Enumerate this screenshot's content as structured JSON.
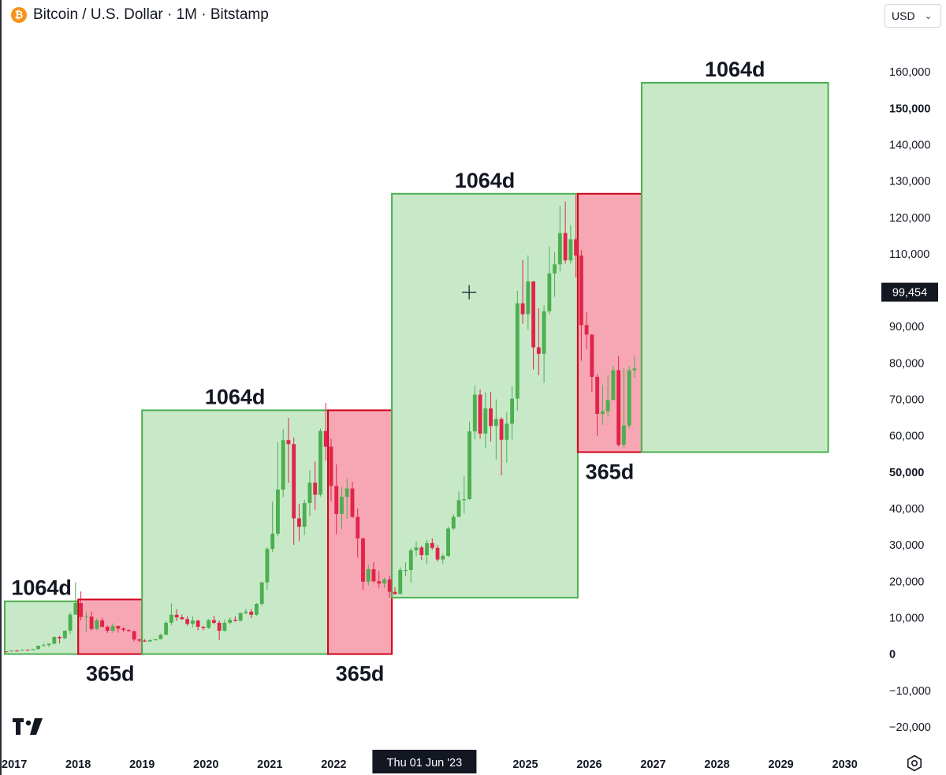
{
  "header": {
    "coin_symbol": "₿",
    "title": "Bitcoin / U.S. Dollar · 1M · Bitstamp",
    "currency": "USD"
  },
  "icons": {
    "coin": "bitcoin-coin-icon",
    "currency_dropdown": "chevron-down-icon",
    "settings": "gear-icon",
    "logo": "tradingview-logo-icon",
    "cursor": "crosshair-cursor-icon"
  },
  "colors": {
    "up": "#4caf50",
    "down": "#e0244a",
    "green_fill": "#c8e9c8",
    "green_stroke": "#4caf50",
    "red_fill": "#f7a7b4",
    "red_stroke": "#d0021b",
    "label_bg": "#131722"
  },
  "chart_data": {
    "type": "candlestick",
    "title": "Bitcoin / U.S. Dollar · 1M · Bitstamp",
    "ylim": [
      -25000,
      170000
    ],
    "xlim": [
      2016.85,
      2030.35
    ],
    "y_ticks": [
      "160,000",
      "150,000",
      "140,000",
      "130,000",
      "120,000",
      "110,000",
      "100,000",
      "90,000",
      "80,000",
      "70,000",
      "60,000",
      "50,000",
      "40,000",
      "30,000",
      "20,000",
      "10,000",
      "0",
      "−10,000",
      "−20,000"
    ],
    "y_tick_values": [
      160000,
      150000,
      140000,
      130000,
      120000,
      110000,
      100000,
      90000,
      80000,
      70000,
      60000,
      50000,
      40000,
      30000,
      20000,
      10000,
      0,
      -10000,
      -20000
    ],
    "bold_ticks": [
      "150,000",
      "50,000",
      "0"
    ],
    "x_ticks": [
      "2017",
      "2018",
      "2019",
      "2020",
      "2021",
      "2022",
      "2025",
      "2026",
      "2027",
      "2028",
      "2029",
      "2030"
    ],
    "x_tick_values": [
      2017,
      2018,
      2019,
      2020,
      2021,
      2022,
      2025,
      2026,
      2027,
      2028,
      2029,
      2030
    ],
    "price_label": "99,454",
    "price_value": 99454,
    "crosshair_date": "Thu 01 Jun '23",
    "crosshair_date_value": 2023.42,
    "crosshair_point": {
      "x": 2024.12,
      "y": 99454
    },
    "zones": [
      {
        "type": "green",
        "x0": 2016.85,
        "x1": 2018.0,
        "y0": 0,
        "y1": 14500,
        "label": "1064d",
        "label_pos": "top"
      },
      {
        "type": "red",
        "x0": 2018.0,
        "x1": 2019.0,
        "y0": 0,
        "y1": 15000,
        "label": "365d",
        "label_pos": "bottom"
      },
      {
        "type": "green",
        "x0": 2019.0,
        "x1": 2021.91,
        "y0": 0,
        "y1": 67000,
        "label": "1064d",
        "label_pos": "top"
      },
      {
        "type": "red",
        "x0": 2021.91,
        "x1": 2022.91,
        "y0": 0,
        "y1": 67000,
        "label": "365d",
        "label_pos": "bottom"
      },
      {
        "type": "green",
        "x0": 2022.91,
        "x1": 2025.82,
        "y0": 15500,
        "y1": 126500,
        "label": "1064d",
        "label_pos": "top"
      },
      {
        "type": "red",
        "x0": 2025.82,
        "x1": 2026.82,
        "y0": 55500,
        "y1": 126500,
        "label": "365d",
        "label_pos": "bottom"
      },
      {
        "type": "green",
        "x0": 2026.82,
        "x1": 2029.74,
        "y0": 55500,
        "y1": 157000,
        "label": "1064d",
        "label_pos": "top"
      }
    ],
    "candles_monthly_from": "2016-11",
    "candles": [
      [
        740,
        730,
        760,
        720
      ],
      [
        730,
        960,
        980,
        730
      ],
      [
        960,
        950,
        1150,
        750
      ],
      [
        950,
        1190,
        1200,
        930
      ],
      [
        1190,
        1070,
        1260,
        890
      ],
      [
        1070,
        1350,
        1360,
        1060
      ],
      [
        1350,
        2300,
        2330,
        1350
      ],
      [
        2300,
        2480,
        3000,
        2100
      ],
      [
        2480,
        2860,
        2930,
        1900
      ],
      [
        2860,
        4700,
        4800,
        2700
      ],
      [
        4700,
        4340,
        5000,
        2970
      ],
      [
        4340,
        6440,
        6500,
        4100
      ],
      [
        6440,
        10850,
        11500,
        5500
      ],
      [
        10850,
        14000,
        19700,
        10800
      ],
      [
        14000,
        10200,
        17200,
        9200
      ],
      [
        10200,
        10300,
        11700,
        6000
      ],
      [
        10300,
        6900,
        11700,
        6500
      ],
      [
        6900,
        9250,
        9750,
        6500
      ],
      [
        9250,
        7500,
        10000,
        7300
      ],
      [
        7500,
        6400,
        7800,
        5800
      ],
      [
        6400,
        7750,
        8450,
        5800
      ],
      [
        7750,
        7000,
        7800,
        5900
      ],
      [
        7000,
        6600,
        7400,
        6100
      ],
      [
        6600,
        6300,
        6800,
        6200
      ],
      [
        6300,
        4000,
        6400,
        3500
      ],
      [
        4000,
        3700,
        4300,
        3200
      ],
      [
        3700,
        3450,
        4100,
        3350
      ],
      [
        3450,
        3800,
        4200,
        3350
      ],
      [
        3800,
        4100,
        4100,
        3700
      ],
      [
        4100,
        5300,
        5600,
        4100
      ],
      [
        5300,
        8600,
        9100,
        5300
      ],
      [
        8600,
        10800,
        13900,
        7900
      ],
      [
        10800,
        10100,
        12300,
        9100
      ],
      [
        10100,
        9600,
        10900,
        9400
      ],
      [
        9600,
        8300,
        10400,
        7800
      ],
      [
        8300,
        9200,
        10400,
        7300
      ],
      [
        9200,
        7500,
        9400,
        6500
      ],
      [
        7500,
        7200,
        7800,
        6500
      ],
      [
        7200,
        9350,
        9600,
        6900
      ],
      [
        9350,
        8600,
        10500,
        8200
      ],
      [
        8600,
        6400,
        9200,
        3800
      ],
      [
        6400,
        8600,
        9500,
        6200
      ],
      [
        8600,
        9450,
        10100,
        8200
      ],
      [
        9450,
        9150,
        10400,
        8900
      ],
      [
        9150,
        11300,
        11400,
        9000
      ],
      [
        11300,
        11650,
        12400,
        10900
      ],
      [
        11650,
        10800,
        12400,
        9900
      ],
      [
        10800,
        13800,
        14000,
        10400
      ],
      [
        13800,
        19700,
        19900,
        13200
      ],
      [
        19700,
        28900,
        29300,
        17600
      ],
      [
        28900,
        33100,
        41900,
        28100
      ],
      [
        33100,
        45200,
        58300,
        32300
      ],
      [
        45200,
        58800,
        61800,
        43100
      ],
      [
        58800,
        57700,
        64900,
        47000
      ],
      [
        57700,
        37300,
        59500,
        30000
      ],
      [
        37300,
        35000,
        41300,
        31000
      ],
      [
        35000,
        41500,
        42400,
        32700
      ],
      [
        41500,
        47100,
        50500,
        37900
      ],
      [
        47100,
        43800,
        52900,
        39600
      ],
      [
        43800,
        61300,
        62000,
        43300
      ],
      [
        61300,
        57000,
        69000,
        53200
      ],
      [
        57000,
        46200,
        59200,
        42000
      ],
      [
        46200,
        38500,
        52100,
        32900
      ],
      [
        38500,
        43200,
        45900,
        34400
      ],
      [
        43200,
        45500,
        48200,
        37200
      ],
      [
        45500,
        37700,
        47400,
        37400
      ],
      [
        37700,
        31800,
        40000,
        26500
      ],
      [
        31800,
        19900,
        31900,
        17600
      ],
      [
        19900,
        23300,
        24600,
        18800
      ],
      [
        23300,
        20000,
        25200,
        19600
      ],
      [
        20000,
        19400,
        22800,
        18200
      ],
      [
        19400,
        20500,
        21100,
        18200
      ],
      [
        20500,
        17100,
        21500,
        15500
      ],
      [
        17100,
        16500,
        18400,
        16300
      ],
      [
        16500,
        23100,
        23800,
        16500
      ],
      [
        23100,
        23100,
        25200,
        21400
      ],
      [
        23100,
        28500,
        29200,
        19600
      ],
      [
        28500,
        29300,
        31000,
        26900
      ],
      [
        29300,
        27200,
        29800,
        25800
      ],
      [
        27200,
        30500,
        31400,
        24800
      ],
      [
        30500,
        29200,
        31800,
        28600
      ],
      [
        29200,
        26000,
        30000,
        25400
      ],
      [
        26000,
        27000,
        27500,
        24900
      ],
      [
        27000,
        34500,
        35000,
        26600
      ],
      [
        34500,
        37700,
        38400,
        34100
      ],
      [
        37700,
        42300,
        44700,
        37700
      ],
      [
        42300,
        42600,
        48900,
        38600
      ],
      [
        42600,
        61200,
        63900,
        42300
      ],
      [
        61200,
        71300,
        73800,
        59000
      ],
      [
        71300,
        60600,
        72700,
        59200
      ],
      [
        60600,
        67500,
        71900,
        56600
      ],
      [
        67500,
        62700,
        72000,
        58400
      ],
      [
        62700,
        64600,
        70000,
        53500
      ],
      [
        64600,
        58900,
        65100,
        49100
      ],
      [
        58900,
        63300,
        66500,
        52600
      ],
      [
        63300,
        70200,
        73600,
        58900
      ],
      [
        70200,
        96400,
        99800,
        66800
      ],
      [
        96400,
        93400,
        108300,
        90800
      ],
      [
        93400,
        102400,
        109600,
        89200
      ],
      [
        102400,
        84300,
        102500,
        78200
      ],
      [
        84300,
        82500,
        95000,
        76600
      ],
      [
        82500,
        94200,
        95800,
        74500
      ],
      [
        94200,
        104600,
        111900,
        93400
      ],
      [
        104600,
        107100,
        110500,
        98200
      ],
      [
        107100,
        115700,
        123200,
        105100
      ],
      [
        115700,
        108200,
        124400,
        107300
      ],
      [
        108200,
        114000,
        117900,
        107300
      ],
      [
        114000,
        109500,
        126200,
        103500
      ],
      [
        109500,
        90400,
        111000,
        80600
      ],
      [
        90400,
        87800,
        94000,
        83800
      ],
      [
        87800,
        76200,
        87900,
        72000
      ],
      [
        76200,
        66000,
        76900,
        60000
      ],
      [
        66000,
        66700,
        74000,
        63000
      ],
      [
        66700,
        69800,
        76700,
        65200
      ],
      [
        69800,
        78000,
        79300,
        74500
      ],
      [
        78000,
        57500,
        81900,
        57000
      ],
      [
        57500,
        62800,
        78500,
        56700
      ],
      [
        62800,
        78000,
        79200,
        62000
      ],
      [
        78000,
        78500,
        81800,
        76000
      ]
    ]
  }
}
